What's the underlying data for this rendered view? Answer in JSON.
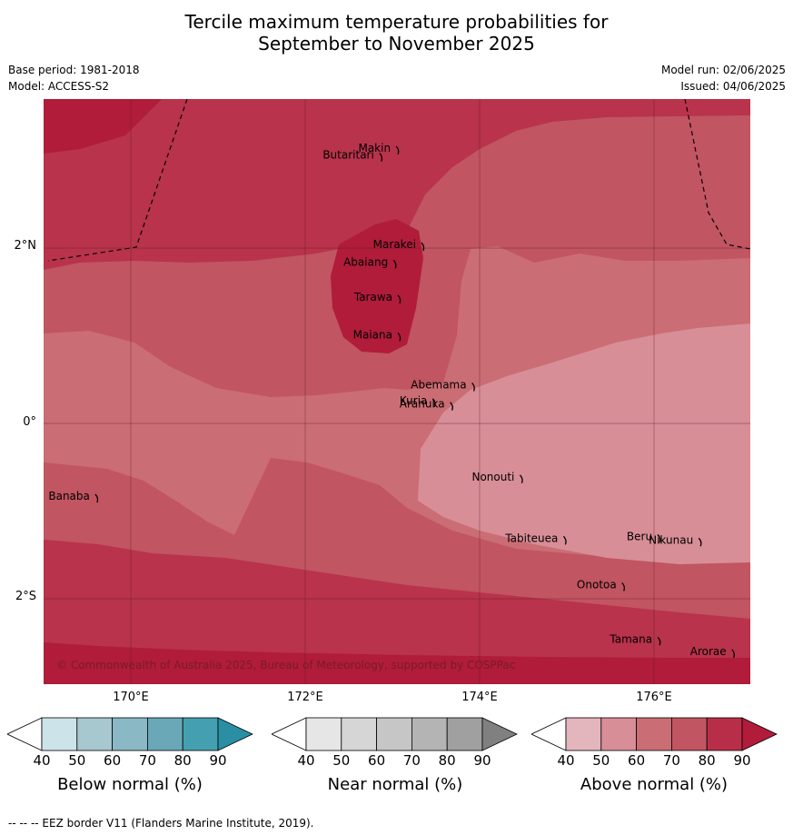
{
  "title_line1": "Tercile maximum temperature probabilities for",
  "title_line2": "September to November 2025",
  "base_period": "Base period: 1981-2018",
  "model": "Model: ACCESS-S2",
  "model_run": "Model run: 02/06/2025",
  "issued": "Issued: 04/06/2025",
  "copyright": "© Commonwealth of Australia 2025, Bureau of Meteorology, supported by COSPPac",
  "footer": "--  --  -- EEZ border V11 (Flanders Marine Institute, 2019).",
  "lat_labels": [
    "2°N",
    "0°",
    "2°S"
  ],
  "lon_labels": [
    "170°E",
    "172°E",
    "174°E",
    "176°E"
  ],
  "places": [
    {
      "name": "Makin",
      "lon": 172.98,
      "lat": 3.1
    },
    {
      "name": "Butaritari",
      "lon": 172.79,
      "lat": 3.02
    },
    {
      "name": "Marakei",
      "lon": 173.27,
      "lat": 2.0
    },
    {
      "name": "Abaiang",
      "lon": 172.95,
      "lat": 1.8
    },
    {
      "name": "Tarawa",
      "lon": 173.0,
      "lat": 1.4
    },
    {
      "name": "Maiana",
      "lon": 173.0,
      "lat": 0.97
    },
    {
      "name": "Abemama",
      "lon": 173.85,
      "lat": 0.4
    },
    {
      "name": "Kuria",
      "lon": 173.4,
      "lat": 0.22
    },
    {
      "name": "Aranuka",
      "lon": 173.6,
      "lat": 0.18
    },
    {
      "name": "Nonouti",
      "lon": 174.4,
      "lat": -0.65
    },
    {
      "name": "Banaba",
      "lon": 169.53,
      "lat": -0.87
    },
    {
      "name": "Beru",
      "lon": 175.98,
      "lat": -1.33
    },
    {
      "name": "Tabiteuea",
      "lon": 174.9,
      "lat": -1.35
    },
    {
      "name": "Nikunau",
      "lon": 176.45,
      "lat": -1.37
    },
    {
      "name": "Onotoa",
      "lon": 175.57,
      "lat": -1.88
    },
    {
      "name": "Tamana",
      "lon": 175.98,
      "lat": -2.5
    },
    {
      "name": "Arorae",
      "lon": 176.83,
      "lat": -2.64
    }
  ],
  "colorbars": [
    {
      "label": "Below normal (%)",
      "ticks": [
        "40",
        "50",
        "60",
        "70",
        "80",
        "90"
      ],
      "colors": [
        "#ffffff",
        "#cde3ea",
        "#a8c8d0",
        "#8ab8c4",
        "#6aa8b8",
        "#44a0b0",
        "#2a8fa3"
      ]
    },
    {
      "label": "Near normal (%)",
      "ticks": [
        "40",
        "50",
        "60",
        "70",
        "80",
        "90"
      ],
      "colors": [
        "#ffffff",
        "#e6e6e6",
        "#d6d6d6",
        "#c6c6c6",
        "#b4b4b4",
        "#a0a0a0",
        "#808080"
      ]
    },
    {
      "label": "Above normal (%)",
      "ticks": [
        "40",
        "50",
        "60",
        "70",
        "80",
        "90"
      ],
      "colors": [
        "#ffffff",
        "#e3b5bd",
        "#d88e97",
        "#cb6d74",
        "#c15561",
        "#b82e49",
        "#b01c3a"
      ]
    }
  ],
  "map_colors": {
    "p50": "#d88e97",
    "p60": "#cb6d74",
    "p70": "#c15561",
    "p80": "#b8334b",
    "p90": "#b01c3a"
  }
}
